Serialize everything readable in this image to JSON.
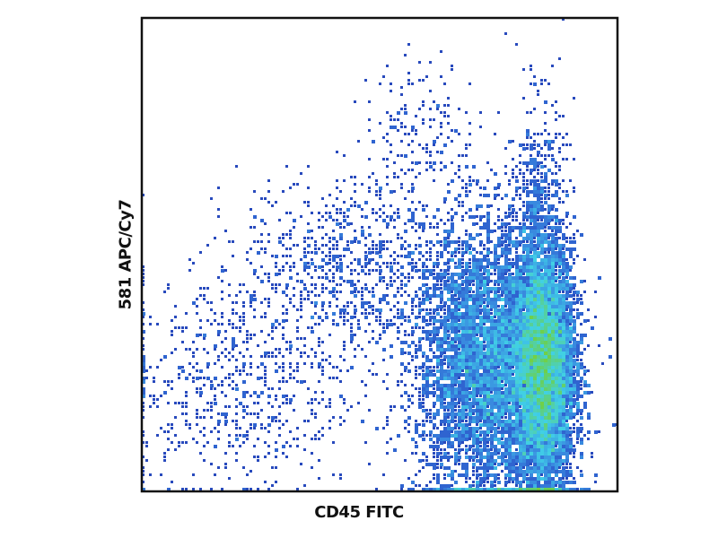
{
  "chart_data": {
    "type": "heatmap",
    "subtype": "flow cytometry density dot plot",
    "title": "",
    "xlabel": "CD45 FITC",
    "ylabel": "581 APC/Cy7",
    "xlim": [
      0,
      1024
    ],
    "ylim": [
      0,
      1024
    ],
    "grid": false,
    "legend": "none",
    "colormap": [
      "#ffffff",
      "#1a2a80",
      "#2a50c8",
      "#3a8ce0",
      "#40d0e8",
      "#6ad050",
      "#90d020"
    ],
    "populations": [
      {
        "center": [
          864,
          268
        ],
        "sd": [
          35,
          136
        ],
        "events": 9000
      },
      {
        "center": [
          740,
          280
        ],
        "sd": [
          75,
          150
        ],
        "events": 7000
      },
      {
        "center": [
          854,
          617
        ],
        "sd": [
          29,
          116
        ],
        "events": 500
      },
      {
        "center": [
          448,
          481
        ],
        "sd": [
          116,
          97
        ],
        "events": 900
      },
      {
        "center": [
          197,
          229
        ],
        "sd": [
          135,
          116
        ],
        "events": 700
      },
      {
        "center": [
          603,
          791
        ],
        "sd": [
          60,
          70
        ],
        "events": 160
      }
    ]
  }
}
